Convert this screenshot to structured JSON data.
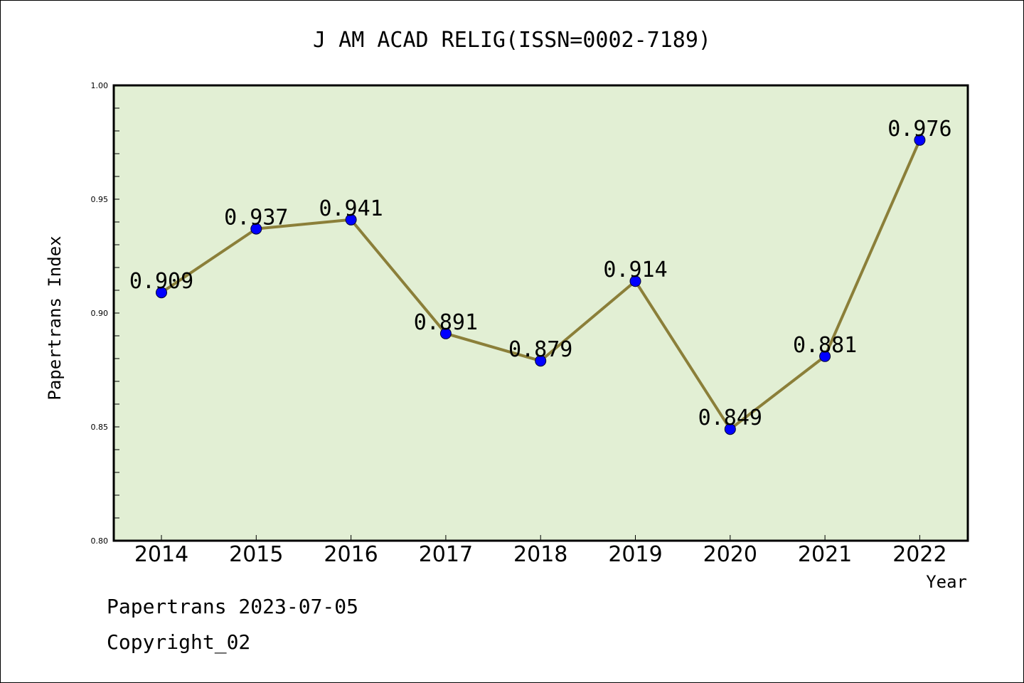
{
  "chart_data": {
    "type": "line",
    "title": "J AM ACAD RELIG(ISSN=0002-7189)",
    "xlabel": "Year",
    "ylabel": "Papertrans Index",
    "categories": [
      "2014",
      "2015",
      "2016",
      "2017",
      "2018",
      "2019",
      "2020",
      "2021",
      "2022"
    ],
    "values": [
      0.909,
      0.937,
      0.941,
      0.891,
      0.879,
      0.914,
      0.849,
      0.881,
      0.976
    ],
    "data_labels": [
      "0.909",
      "0.937",
      "0.941",
      "0.891",
      "0.879",
      "0.914",
      "0.849",
      "0.881",
      "0.976"
    ],
    "ylim": [
      0.8,
      1.0
    ],
    "yticks": [
      0.8,
      0.85,
      0.9,
      0.95,
      1.0
    ],
    "ytick_labels": [
      "0.80",
      "0.85",
      "0.90",
      "0.95",
      "1.00"
    ],
    "grid": false,
    "colors": {
      "plot_background": "#e2efd4",
      "line": "#8b7f39",
      "marker": "#0000ff"
    }
  },
  "footer": {
    "line1": "Papertrans 2023-07-05",
    "line2": "Copyright_02"
  }
}
